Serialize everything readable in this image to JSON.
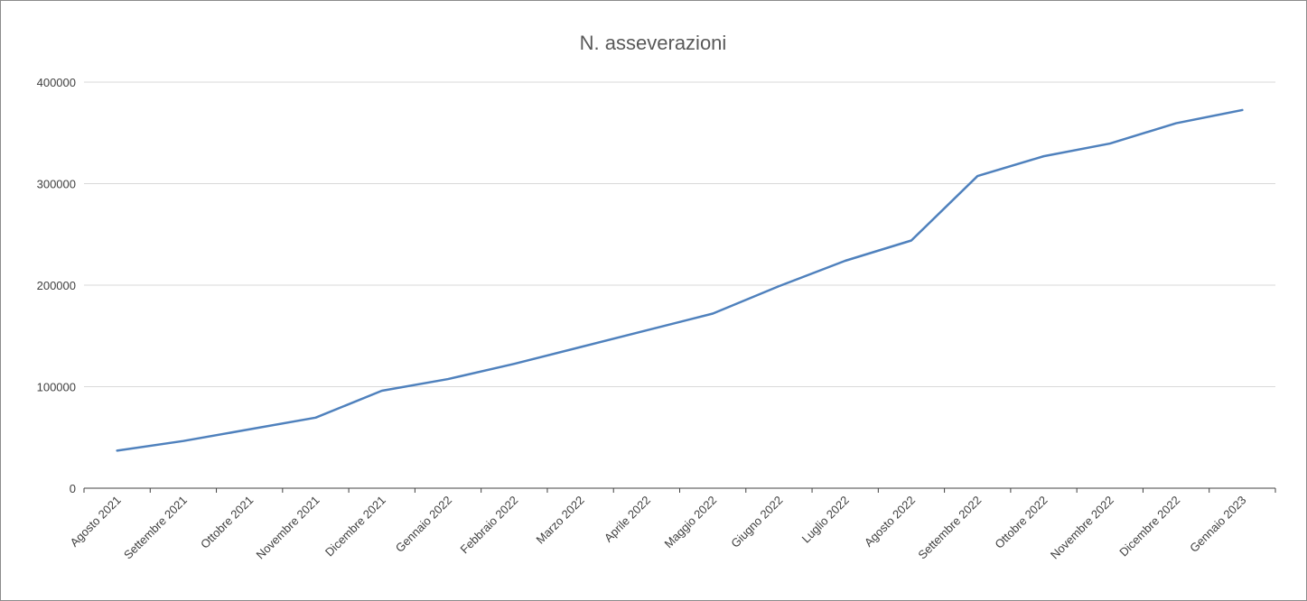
{
  "chart_data": {
    "type": "line",
    "title": "N. asseverazioni",
    "xlabel": "",
    "ylabel": "",
    "categories": [
      "Agosto 2021",
      "Settembre 2021",
      "Ottobre 2021",
      "Novembre 2021",
      "Dicembre 2021",
      "Gennaio 2022",
      "Febbraio 2022",
      "Marzo 2022",
      "Aprile 2022",
      "Maggio 2022",
      "Giugno 2022",
      "Luglio 2022",
      "Agosto 2022",
      "Settembre 2022",
      "Ottobre 2022",
      "Novembre 2022",
      "Dicembre 2022",
      "Gennaio 2023"
    ],
    "series": [
      {
        "values": [
          37000,
          46500,
          58000,
          69500,
          96000,
          107500,
          122500,
          139000,
          155500,
          172000,
          199000,
          224000,
          244000,
          307500,
          327000,
          339500,
          359500,
          372500
        ]
      }
    ],
    "ylim": [
      0,
      400000
    ],
    "yticks": [
      "0",
      "100000",
      "200000",
      "300000",
      "400000"
    ],
    "grid": true,
    "legend": "none",
    "color": "#4f81bd"
  }
}
